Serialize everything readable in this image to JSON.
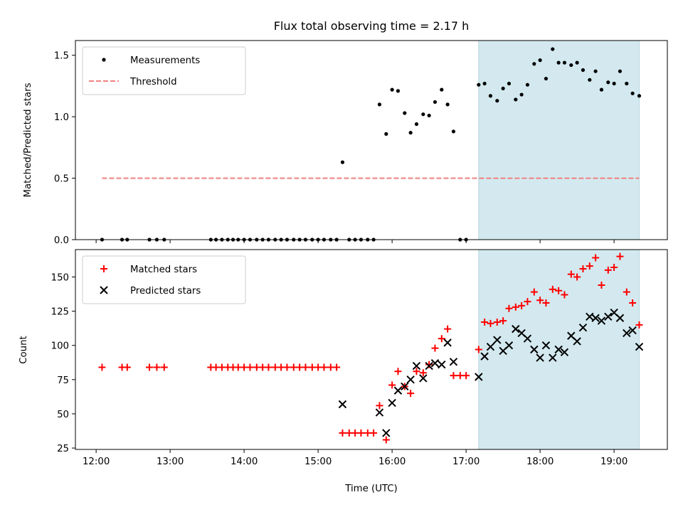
{
  "chart_data": [
    {
      "type": "scatter",
      "title": "Flux total observing time = 2.17 h",
      "xlabel": "",
      "ylabel": "Matched/Predicted stars",
      "xlim": [
        11.72,
        19.72
      ],
      "ylim": [
        0,
        1.62
      ],
      "yticks": [
        0.0,
        0.5,
        1.0,
        1.5
      ],
      "ytick_labels": [
        "0.0",
        "0.5",
        "1.0",
        "1.5"
      ],
      "shaded_region": {
        "x0": 17.17,
        "x1": 19.34,
        "color": "#d3e9ef"
      },
      "legend": {
        "placement": "top-left",
        "entries": [
          "Measurements",
          "Threshold"
        ]
      },
      "series": [
        {
          "name": "Measurements",
          "marker": "dot",
          "color": "#000000",
          "x": [
            12.08,
            12.35,
            12.42,
            12.72,
            12.82,
            12.92,
            13.55,
            13.62,
            13.7,
            13.78,
            13.85,
            13.92,
            14.0,
            14.08,
            14.17,
            14.25,
            14.33,
            14.42,
            14.5,
            14.58,
            14.67,
            14.75,
            14.83,
            14.92,
            15.0,
            15.08,
            15.17,
            15.25,
            15.33,
            15.42,
            15.5,
            15.58,
            15.67,
            15.75,
            15.83,
            15.92,
            16.0,
            16.08,
            16.17,
            16.25,
            16.33,
            16.42,
            16.5,
            16.58,
            16.67,
            16.75,
            16.83,
            16.92,
            17.0,
            17.17,
            17.25,
            17.33,
            17.42,
            17.5,
            17.58,
            17.67,
            17.75,
            17.83,
            17.92,
            18.0,
            18.08,
            18.17,
            18.25,
            18.33,
            18.42,
            18.5,
            18.58,
            18.67,
            18.75,
            18.83,
            18.92,
            19.0,
            19.08,
            19.17,
            19.25,
            19.34
          ],
          "y": [
            0,
            0,
            0,
            0,
            0,
            0,
            0,
            0,
            0,
            0,
            0,
            0,
            0,
            0,
            0,
            0,
            0,
            0,
            0,
            0,
            0,
            0,
            0,
            0,
            0,
            0,
            0,
            0,
            0.63,
            0,
            0,
            0,
            0,
            0,
            1.1,
            0.86,
            1.22,
            1.21,
            1.03,
            0.87,
            0.94,
            1.02,
            1.01,
            1.12,
            1.22,
            1.1,
            0.88,
            0,
            0,
            1.26,
            1.27,
            1.17,
            1.13,
            1.23,
            1.27,
            1.14,
            1.18,
            1.26,
            1.43,
            1.46,
            1.31,
            1.55,
            1.44,
            1.44,
            1.42,
            1.44,
            1.38,
            1.3,
            1.37,
            1.22,
            1.28,
            1.27,
            1.37,
            1.27,
            1.19,
            1.17
          ]
        },
        {
          "name": "Threshold",
          "marker": "dashed-line",
          "color": "#f08080",
          "x": [
            12.08,
            19.34
          ],
          "y": [
            0.5,
            0.5
          ]
        }
      ]
    },
    {
      "type": "scatter",
      "title": "",
      "xlabel": "Time (UTC)",
      "ylabel": "Count",
      "xlim": [
        11.72,
        19.72
      ],
      "ylim": [
        24,
        170
      ],
      "xticks": [
        12,
        13,
        14,
        15,
        16,
        17,
        18,
        19
      ],
      "xtick_labels": [
        "12:00",
        "13:00",
        "14:00",
        "15:00",
        "16:00",
        "17:00",
        "18:00",
        "19:00"
      ],
      "yticks": [
        25,
        50,
        75,
        100,
        125,
        150
      ],
      "ytick_labels": [
        "25",
        "50",
        "75",
        "100",
        "125",
        "150"
      ],
      "shaded_region": {
        "x0": 17.17,
        "x1": 19.34,
        "color": "#d3e9ef"
      },
      "legend": {
        "placement": "top-left",
        "entries": [
          "Matched stars",
          "Predicted stars"
        ]
      },
      "series": [
        {
          "name": "Matched stars",
          "marker": "plus",
          "color": "#ff0000",
          "x": [
            12.08,
            12.35,
            12.42,
            12.72,
            12.82,
            12.92,
            13.55,
            13.62,
            13.7,
            13.78,
            13.85,
            13.92,
            14.0,
            14.08,
            14.17,
            14.25,
            14.33,
            14.42,
            14.5,
            14.58,
            14.67,
            14.75,
            14.83,
            14.92,
            15.0,
            15.08,
            15.17,
            15.25,
            15.33,
            15.42,
            15.5,
            15.58,
            15.67,
            15.75,
            15.83,
            15.92,
            16.0,
            16.08,
            16.17,
            16.25,
            16.33,
            16.42,
            16.5,
            16.58,
            16.67,
            16.75,
            16.83,
            16.92,
            17.0,
            17.17,
            17.25,
            17.33,
            17.42,
            17.5,
            17.58,
            17.67,
            17.75,
            17.83,
            17.92,
            18.0,
            18.08,
            18.17,
            18.25,
            18.33,
            18.42,
            18.5,
            18.58,
            18.67,
            18.75,
            18.83,
            18.92,
            19.0,
            19.08,
            19.17,
            19.25,
            19.34
          ],
          "y": [
            84,
            84,
            84,
            84,
            84,
            84,
            84,
            84,
            84,
            84,
            84,
            84,
            84,
            84,
            84,
            84,
            84,
            84,
            84,
            84,
            84,
            84,
            84,
            84,
            84,
            84,
            84,
            84,
            36,
            36,
            36,
            36,
            36,
            36,
            56,
            31,
            71,
            81,
            70,
            65,
            81,
            80,
            86,
            98,
            105,
            112,
            78,
            78,
            78,
            97,
            117,
            116,
            117,
            118,
            127,
            128,
            129,
            132,
            139,
            133,
            131,
            141,
            140,
            137,
            152,
            150,
            156,
            158,
            164,
            144,
            155,
            157,
            165,
            139,
            131,
            115
          ]
        },
        {
          "name": "Predicted stars",
          "marker": "x",
          "color": "#000000",
          "x": [
            15.33,
            15.83,
            15.92,
            16.0,
            16.08,
            16.17,
            16.25,
            16.33,
            16.42,
            16.5,
            16.58,
            16.67,
            16.75,
            16.83,
            17.17,
            17.25,
            17.33,
            17.42,
            17.5,
            17.58,
            17.67,
            17.75,
            17.83,
            17.92,
            18.0,
            18.08,
            18.17,
            18.25,
            18.33,
            18.42,
            18.5,
            18.58,
            18.67,
            18.75,
            18.83,
            18.92,
            19.0,
            19.08,
            19.17,
            19.25,
            19.34
          ],
          "y": [
            57,
            51,
            36,
            58,
            67,
            70,
            75,
            85,
            76,
            85,
            87,
            86,
            102,
            88,
            77,
            92,
            99,
            104,
            96,
            100,
            112,
            109,
            105,
            97,
            91,
            100,
            91,
            97,
            95,
            107,
            103,
            113,
            121,
            120,
            118,
            121,
            124,
            120,
            109,
            111,
            99
          ]
        }
      ]
    }
  ]
}
